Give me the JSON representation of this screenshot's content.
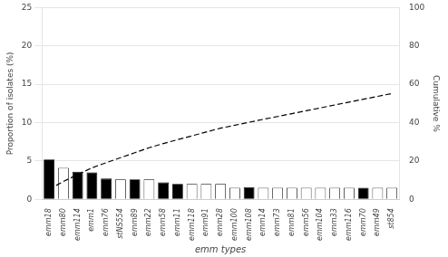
{
  "chart_data": {
    "type": "bar",
    "categories": [
      "emm18",
      "emm80",
      "emm114",
      "emm1",
      "emm76",
      "stNS554",
      "emm89",
      "emm22",
      "emm58",
      "emm11",
      "emm118",
      "emm91",
      "emm28",
      "emm100",
      "emm108",
      "emm14",
      "emm73",
      "emm81",
      "emm56",
      "emm104",
      "emm33",
      "emm116",
      "emm70",
      "emm49",
      "st854"
    ],
    "series": [
      {
        "type": "bar",
        "colors": [
          "black",
          "white",
          "black",
          "black",
          "black",
          "white",
          "black",
          "white",
          "black",
          "black",
          "white",
          "white",
          "white",
          "white",
          "black",
          "white",
          "white",
          "white",
          "white",
          "white",
          "white",
          "white",
          "black",
          "white",
          "white"
        ],
        "values": [
          5.2,
          4.1,
          3.6,
          3.5,
          2.7,
          2.6,
          2.6,
          2.6,
          2.2,
          2.0,
          2.0,
          2.0,
          2.0,
          1.5,
          1.6,
          1.5,
          1.5,
          1.5,
          1.5,
          1.5,
          1.5,
          1.5,
          1.5,
          1.5,
          1.5
        ]
      },
      {
        "type": "line",
        "color": "black",
        "line_style": "dashed",
        "axis": "y2",
        "values": [
          5.2,
          9.3,
          12.9,
          16.4,
          19.1,
          21.7,
          24.3,
          26.9,
          29.1,
          31.1,
          33.1,
          35.1,
          37.1,
          38.6,
          40.2,
          41.7,
          43.2,
          44.7,
          46.2,
          47.7,
          49.2,
          50.7,
          52.2,
          53.7,
          55.2
        ]
      }
    ],
    "xlabel": "emm types",
    "ylabel": "Proportion of isolates (%)",
    "y2label": "Cumulative %",
    "ylim": [
      0,
      25
    ],
    "yticks": [
      0,
      5,
      10,
      15,
      20,
      25
    ],
    "y2lim": [
      0,
      100
    ],
    "y2ticks": [
      0,
      20,
      40,
      60,
      80,
      100
    ],
    "grid": true
  }
}
